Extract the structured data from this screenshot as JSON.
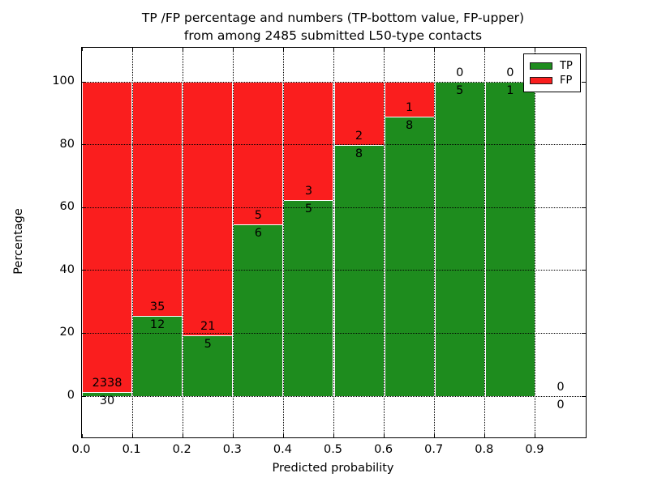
{
  "chart_data": {
    "type": "bar",
    "stacked": true,
    "title_line1": "TP /FP percentage and numbers (TP-bottom value, FP-upper)",
    "title_line2": "from among 2485 submitted L50-type contacts",
    "xlabel": "Predicted probability",
    "ylabel": "Percentage",
    "x_tick_labels": [
      "0.0",
      "0.1",
      "0.2",
      "0.3",
      "0.4",
      "0.5",
      "0.6",
      "0.7",
      "0.8",
      "0.9"
    ],
    "y_tick_labels": [
      "0",
      "20",
      "40",
      "60",
      "80",
      "100"
    ],
    "y_tick_values": [
      0,
      20,
      40,
      60,
      80,
      100
    ],
    "xlim": [
      0.0,
      1.0
    ],
    "ylim": [
      -13,
      110
    ],
    "grid": true,
    "bin_width": 0.1,
    "bins": [
      {
        "x_start": 0.0,
        "tp": 30,
        "fp": 2338
      },
      {
        "x_start": 0.1,
        "tp": 12,
        "fp": 35
      },
      {
        "x_start": 0.2,
        "tp": 5,
        "fp": 21
      },
      {
        "x_start": 0.3,
        "tp": 6,
        "fp": 5
      },
      {
        "x_start": 0.4,
        "tp": 5,
        "fp": 3
      },
      {
        "x_start": 0.5,
        "tp": 8,
        "fp": 2
      },
      {
        "x_start": 0.6,
        "tp": 8,
        "fp": 1
      },
      {
        "x_start": 0.7,
        "tp": 5,
        "fp": 0
      },
      {
        "x_start": 0.8,
        "tp": 1,
        "fp": 0
      },
      {
        "x_start": 0.9,
        "tp": 0,
        "fp": 0
      }
    ],
    "legend": [
      {
        "label": "TP",
        "color": "#1e8c1e"
      },
      {
        "label": "FP",
        "color": "#fa1e1e"
      }
    ],
    "colors": {
      "tp": "#1e8c1e",
      "fp": "#fa1e1e"
    },
    "legend_position": "upper right"
  }
}
